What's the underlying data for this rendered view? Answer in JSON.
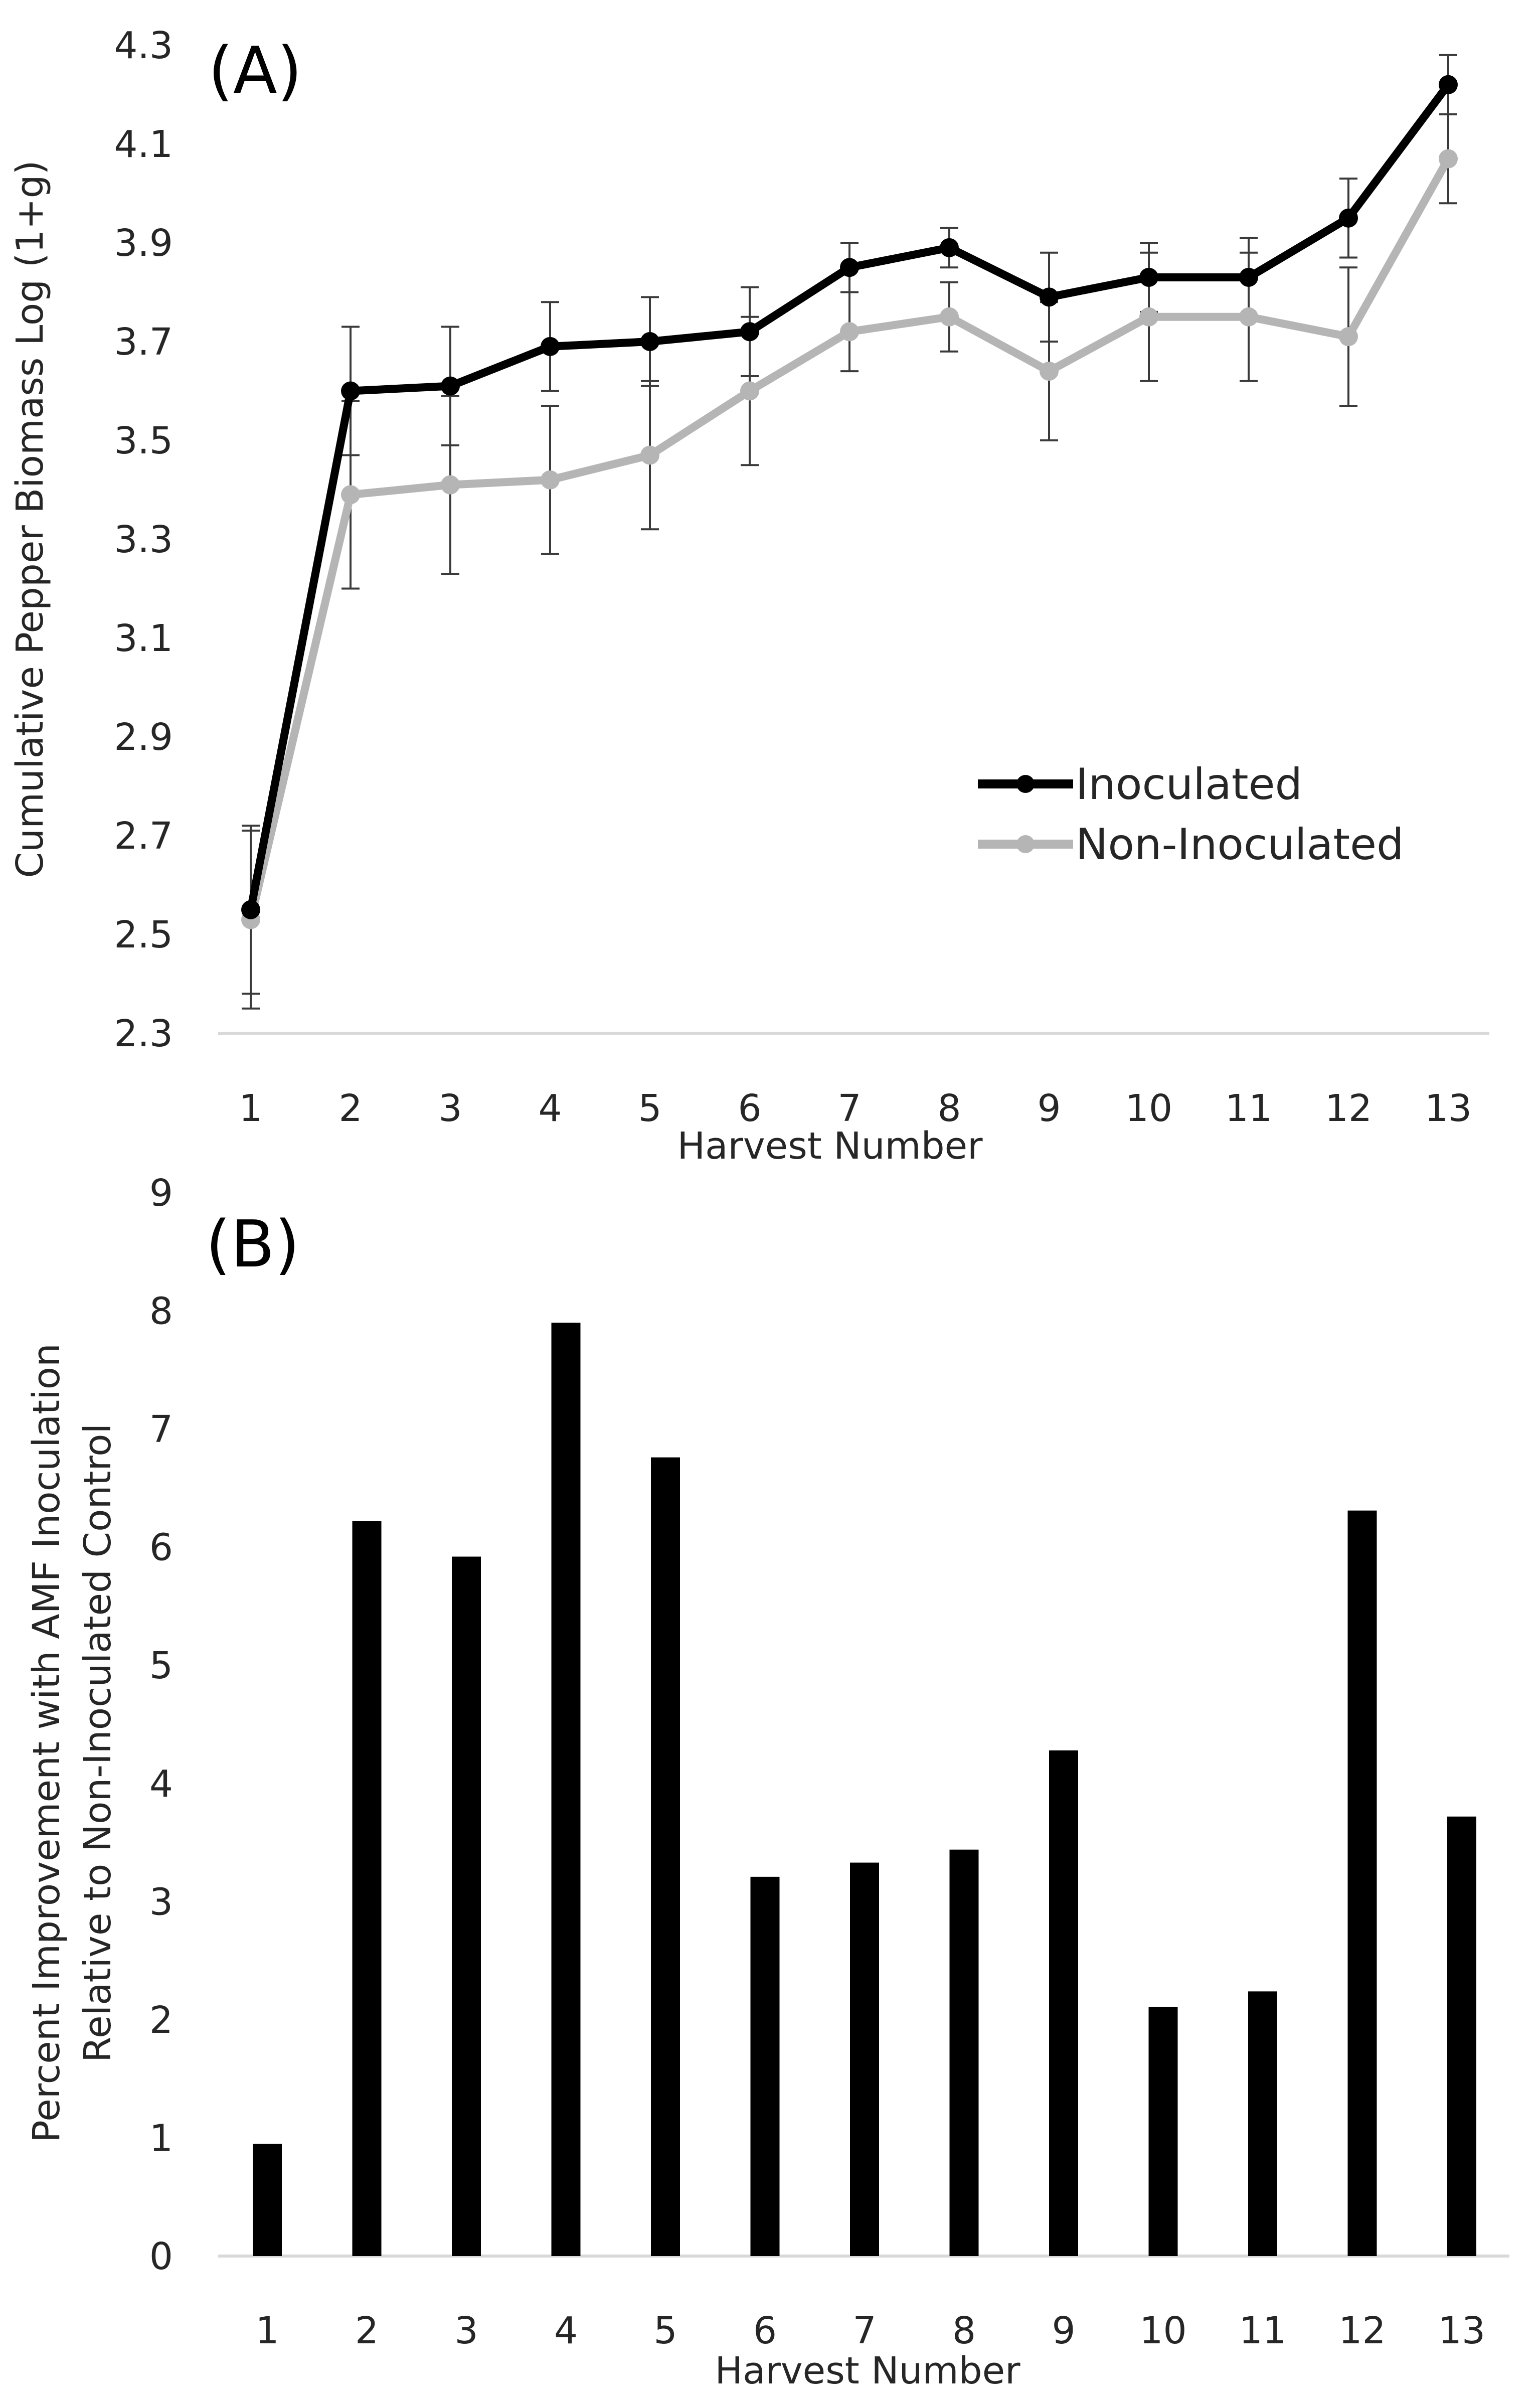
{
  "chart_data": [
    {
      "type": "line",
      "panel_label": "(A)",
      "categories": [
        "1",
        "2",
        "3",
        "4",
        "5",
        "6",
        "7",
        "8",
        "9",
        "10",
        "11",
        "12",
        "13"
      ],
      "series": [
        {
          "name": "Inoculated",
          "color": "#000000",
          "values": [
            2.55,
            3.6,
            3.61,
            3.69,
            3.7,
            3.72,
            3.85,
            3.89,
            3.79,
            3.83,
            3.83,
            3.95,
            4.22
          ],
          "errors": [
            0.17,
            0.13,
            0.12,
            0.09,
            0.09,
            0.09,
            0.05,
            0.04,
            0.09,
            0.07,
            0.08,
            0.08,
            0.06
          ]
        },
        {
          "name": "Non-Inoculated",
          "color": "#b5b5b5",
          "values": [
            2.53,
            3.39,
            3.41,
            3.42,
            3.47,
            3.6,
            3.72,
            3.75,
            3.64,
            3.75,
            3.75,
            3.71,
            4.07
          ],
          "errors": [
            0.18,
            0.19,
            0.18,
            0.15,
            0.15,
            0.15,
            0.08,
            0.07,
            0.14,
            0.13,
            0.13,
            0.14,
            0.09
          ]
        }
      ],
      "ylim": [
        2.3,
        4.3
      ],
      "yticks": [
        "2.3",
        "2.5",
        "2.7",
        "2.9",
        "3.1",
        "3.3",
        "3.5",
        "3.7",
        "3.9",
        "4.1",
        "4.3"
      ],
      "xlabel": "Harvest Number",
      "ylabel": "Cumulative Pepper Biomass Log (1+g)",
      "legend_position": "middle-right",
      "grid": false
    },
    {
      "type": "bar",
      "panel_label": "(B)",
      "categories": [
        "1",
        "2",
        "3",
        "4",
        "5",
        "6",
        "7",
        "8",
        "9",
        "10",
        "11",
        "12",
        "13"
      ],
      "values": [
        0.95,
        6.22,
        5.92,
        7.9,
        6.76,
        3.21,
        3.33,
        3.44,
        4.28,
        2.11,
        2.24,
        6.31,
        3.72
      ],
      "color": "#000000",
      "ylim": [
        0,
        9
      ],
      "yticks": [
        "0",
        "1",
        "2",
        "3",
        "4",
        "5",
        "6",
        "7",
        "8",
        "9"
      ],
      "xlabel": "Harvest Number",
      "ylabel": [
        "Percent Improvement with AMF Inoculation",
        "Relative to Non-Inoculated Control"
      ],
      "grid": false
    }
  ]
}
